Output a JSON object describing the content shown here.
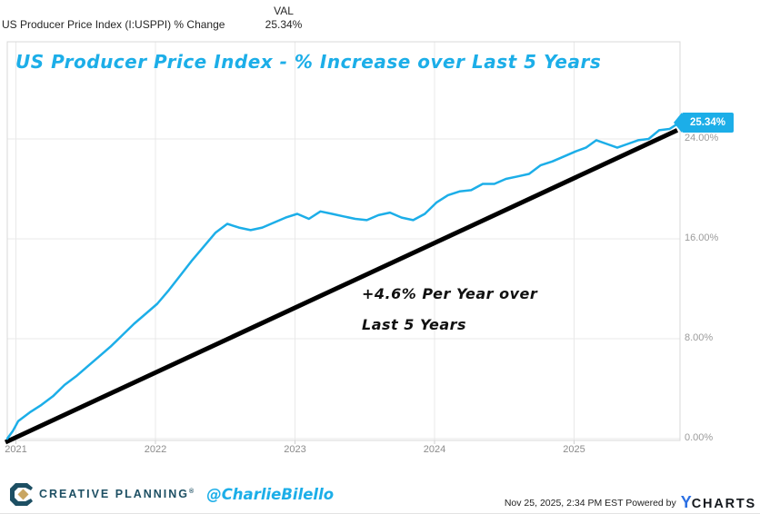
{
  "colors": {
    "accent_cyan": "#1badе8",
    "accent": "#1caee8",
    "trend_black": "#000000",
    "grid": "#e9e9e9",
    "plot_border": "#d8d8d8",
    "y_label_gray": "#9b9b9b",
    "x_label_gray": "#8c8c8c",
    "brand_teal": "#1d4f63",
    "brand_gold": "#c9a662",
    "ycharts_blue": "#2b6fe3"
  },
  "header": {
    "series_label": "US Producer Price Index (I:USPPI) % Change",
    "val_column_header": "VAL",
    "val_value": "25.34%"
  },
  "chart_data": {
    "type": "line",
    "title": "US Producer Price Index - % Increase over Last 5 Years",
    "x_start": "2020-11",
    "x_end": "2025-11",
    "x_tick_labels": [
      "2021",
      "2022",
      "2023",
      "2024",
      "2025"
    ],
    "y_tick_labels": [
      "24.00%",
      "16.00%",
      "8.00%",
      "0.00%"
    ],
    "y_ticks_pct": [
      24,
      16,
      8,
      0
    ],
    "ylim": [
      0,
      26.5
    ],
    "grid": true,
    "legend_position": "none",
    "series": [
      {
        "name": "US Producer Price Index (I:USPPI) % Change",
        "color": "#1caee8",
        "months": [
          "2020-11",
          "2020-12",
          "2021-01",
          "2021-02",
          "2021-03",
          "2021-04",
          "2021-05",
          "2021-06",
          "2021-07",
          "2021-08",
          "2021-09",
          "2021-10",
          "2021-11",
          "2021-12",
          "2022-01",
          "2022-02",
          "2022-03",
          "2022-04",
          "2022-05",
          "2022-06",
          "2022-07",
          "2022-08",
          "2022-09",
          "2022-10",
          "2022-11",
          "2022-12",
          "2023-01",
          "2023-02",
          "2023-03",
          "2023-04",
          "2023-05",
          "2023-06",
          "2023-07",
          "2023-08",
          "2023-09",
          "2023-10",
          "2023-11",
          "2023-12",
          "2024-01",
          "2024-02",
          "2024-03",
          "2024-04",
          "2024-05",
          "2024-06",
          "2024-07",
          "2024-08",
          "2024-09",
          "2024-10",
          "2024-11",
          "2024-12",
          "2025-01",
          "2025-02",
          "2025-03",
          "2025-04",
          "2025-05",
          "2025-06",
          "2025-07",
          "2025-08",
          "2025-09",
          "2025-10",
          "2025-11"
        ],
        "values": [
          0.0,
          0.6,
          1.4,
          2.1,
          2.7,
          3.4,
          4.3,
          5.0,
          5.8,
          6.6,
          7.4,
          8.3,
          9.2,
          10.0,
          10.8,
          11.9,
          13.1,
          14.3,
          15.4,
          16.5,
          17.2,
          16.9,
          16.7,
          16.9,
          17.3,
          17.7,
          18.0,
          17.6,
          18.2,
          18.0,
          17.8,
          17.6,
          17.5,
          17.9,
          18.1,
          17.7,
          17.5,
          18.0,
          18.9,
          19.5,
          19.8,
          19.9,
          20.4,
          20.4,
          20.8,
          21.0,
          21.2,
          21.9,
          22.2,
          22.6,
          23.0,
          23.3,
          23.9,
          23.6,
          23.3,
          23.6,
          23.9,
          24.0,
          24.7,
          24.8,
          25.34
        ]
      }
    ],
    "last_value_flag": "25.34%",
    "trend_line": {
      "start_month": "2020-11",
      "start_pct": 0,
      "end_month": "2025-11",
      "end_pct": 24.7,
      "annual_rate_pct": 4.6
    },
    "annotation": {
      "line1": "+4.6% Per Year over",
      "line2": "Last 5 Years"
    }
  },
  "footer": {
    "brand": "CREATIVE PLANNING",
    "brand_reg": "®",
    "handle": "@CharlieBilello",
    "timestamp_powered": "Nov 25, 2025, 2:34 PM EST Powered by",
    "ycharts_y": "Y",
    "ycharts_charts": "CHARTS"
  }
}
